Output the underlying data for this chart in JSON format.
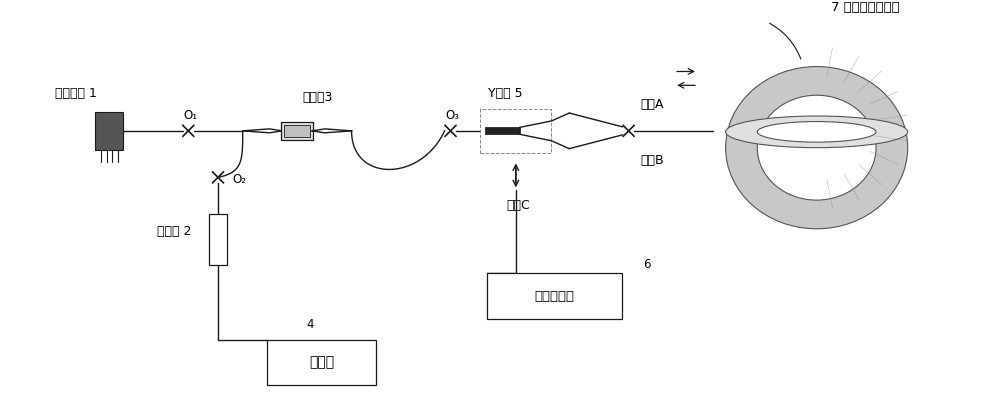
{
  "bg_color": "#ffffff",
  "line_color": "#1a1a1a",
  "figsize": [
    10,
    4
  ],
  "dpi": 100,
  "labels": {
    "laser": "激光光源 1",
    "coupler": "耦合器3",
    "detector": "探测器 2",
    "oscilloscope": "示波器",
    "signal_gen": "信号发生器",
    "y_waveguide": "Y波导 5",
    "fiber_ring": "7 光子带隙光纤环",
    "fusion_A": "熴点A",
    "end_B": "端面B",
    "end_C": "端面C",
    "o1": "O₁",
    "o2": "O₂",
    "o3": "O₃",
    "num4": "4",
    "num6": "6"
  }
}
